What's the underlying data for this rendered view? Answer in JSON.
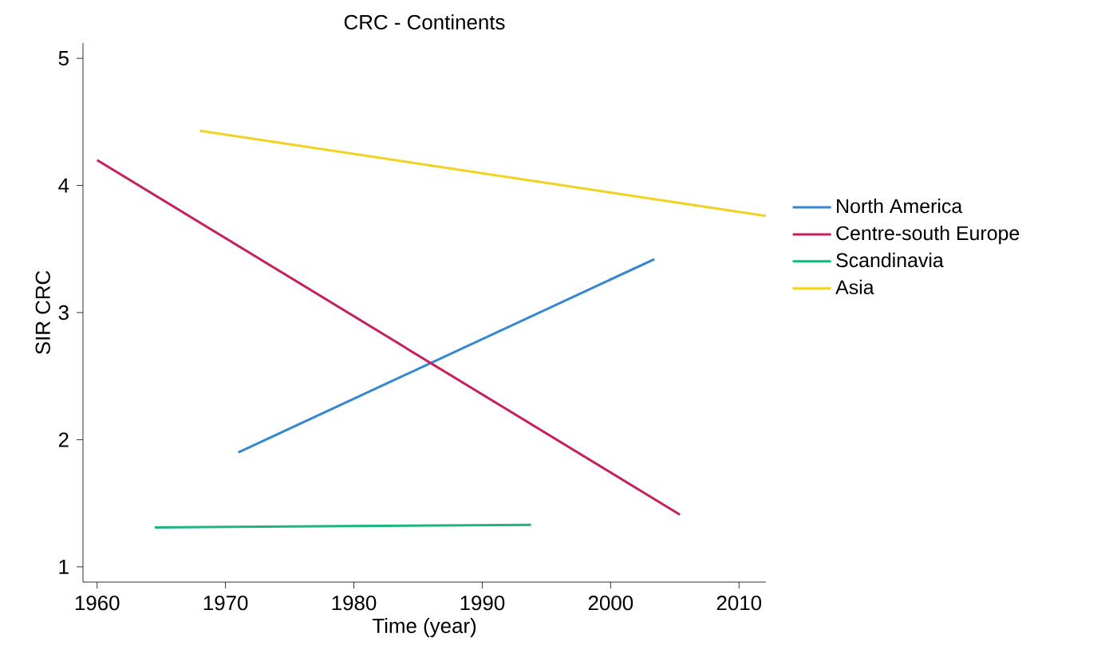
{
  "chart_data": {
    "type": "line",
    "title": "CRC - Continents",
    "xlabel": "Time (year)",
    "ylabel": "SIR CRC",
    "series": [
      {
        "name": "North America",
        "color": "#3487d2",
        "x": [
          1971.0,
          2003.4
        ],
        "values": [
          1.9,
          3.42
        ]
      },
      {
        "name": "Centre-south Europe",
        "color": "#c8205a",
        "x": [
          1960.0,
          2005.4
        ],
        "values": [
          4.2,
          1.41
        ]
      },
      {
        "name": "Scandinavia",
        "color": "#1fb57e",
        "x": [
          1964.5,
          1993.8
        ],
        "values": [
          1.31,
          1.33
        ]
      },
      {
        "name": "Asia",
        "color": "#f2d21e",
        "x": [
          1968.0,
          2012.1
        ],
        "values": [
          4.43,
          3.76
        ]
      }
    ],
    "xlim": [
      1958.9,
      2012.1
    ],
    "ylim": [
      0.88,
      5.12
    ],
    "xticks": [
      1960,
      1970,
      1980,
      1990,
      2000,
      2010
    ],
    "yticks": [
      1,
      2,
      3,
      4,
      5
    ],
    "legend": "right",
    "grid": false
  }
}
